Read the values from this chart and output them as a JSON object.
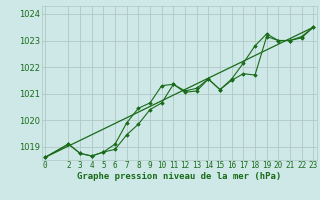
{
  "title": "Graphe pression niveau de la mer (hPa)",
  "bg_color": "#cde8e6",
  "grid_color": "#b0c8c6",
  "line_color": "#1a6b1a",
  "marker_color": "#1a6b1a",
  "ylim": [
    1018.5,
    1024.3
  ],
  "yticks": [
    1019,
    1020,
    1021,
    1022,
    1023,
    1024
  ],
  "xlim": [
    -0.3,
    23.3
  ],
  "xticks": [
    0,
    2,
    3,
    4,
    5,
    6,
    7,
    8,
    9,
    10,
    11,
    12,
    13,
    14,
    15,
    16,
    17,
    18,
    19,
    20,
    21,
    22,
    23
  ],
  "series1_x": [
    0,
    2,
    3,
    4,
    5,
    6,
    7,
    8,
    9,
    10,
    11,
    12,
    13,
    14,
    15,
    16,
    17,
    18,
    19,
    20,
    21,
    22,
    23
  ],
  "series1_y": [
    1018.6,
    1019.1,
    1018.75,
    1018.65,
    1018.8,
    1018.9,
    1019.45,
    1019.85,
    1020.4,
    1020.65,
    1021.35,
    1021.05,
    1021.1,
    1021.55,
    1021.15,
    1021.5,
    1021.75,
    1021.7,
    1023.15,
    1023.0,
    1023.0,
    1023.15,
    1023.5
  ],
  "series2_x": [
    0,
    2,
    3,
    4,
    5,
    6,
    7,
    8,
    9,
    10,
    11,
    12,
    13,
    14,
    15,
    16,
    17,
    18,
    19,
    20,
    21,
    22,
    23
  ],
  "series2_y": [
    1018.6,
    1019.1,
    1018.75,
    1018.65,
    1018.8,
    1019.1,
    1019.9,
    1020.45,
    1020.65,
    1021.3,
    1021.35,
    1021.1,
    1021.2,
    1021.55,
    1021.15,
    1021.55,
    1022.15,
    1022.8,
    1023.25,
    1023.0,
    1023.0,
    1023.1,
    1023.5
  ],
  "series3_x": [
    0,
    23
  ],
  "series3_y": [
    1018.6,
    1023.5
  ],
  "tick_fontsize": 5.5,
  "title_fontsize": 6.5
}
